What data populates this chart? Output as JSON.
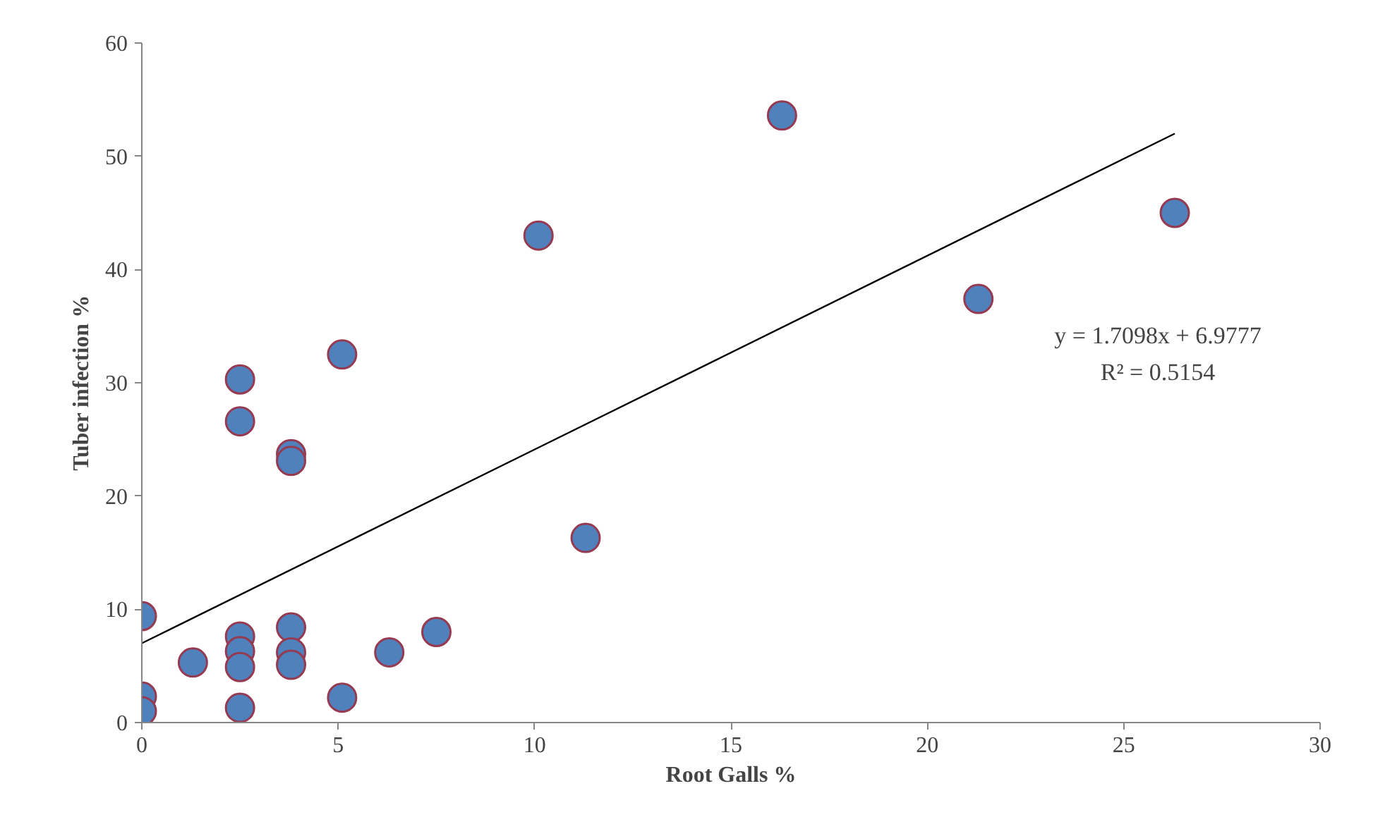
{
  "chart_data": {
    "type": "scatter",
    "xlabel": "Root Galls %",
    "ylabel": "Tuber infection %",
    "xlim": [
      0,
      30
    ],
    "xticks": [
      0,
      5,
      10,
      15,
      20,
      25,
      30
    ],
    "ylim": [
      0,
      60
    ],
    "yticks": [
      0,
      10,
      20,
      30,
      40,
      50,
      60
    ],
    "grid": false,
    "series": [
      {
        "color": "#4f81bd",
        "marker": "circle",
        "x": [
          0,
          0,
          0,
          1.3,
          2.5,
          2.5,
          2.5,
          2.5,
          2.5,
          2.5,
          3.8,
          3.8,
          3.8,
          3.8,
          3.8,
          5.1,
          5.1,
          6.3,
          7.5,
          10.1,
          11.3,
          16.3,
          21.3,
          26.3
        ],
        "values": [
          9.4,
          2.3,
          1.0,
          5.3,
          30.3,
          26.6,
          7.6,
          6.3,
          4.9,
          1.3,
          23.7,
          23.1,
          8.4,
          6.2,
          5.1,
          32.5,
          2.2,
          6.2,
          8.0,
          43.0,
          16.3,
          53.6,
          37.4,
          45.0
        ]
      },
      {
        "type": "line",
        "color": "#000000",
        "x": [
          0,
          26.3
        ],
        "values": [
          7.0,
          52.0
        ]
      }
    ],
    "annotations": [
      "y = 1.7098x + 6.9777",
      "R² = 0.5154"
    ]
  }
}
